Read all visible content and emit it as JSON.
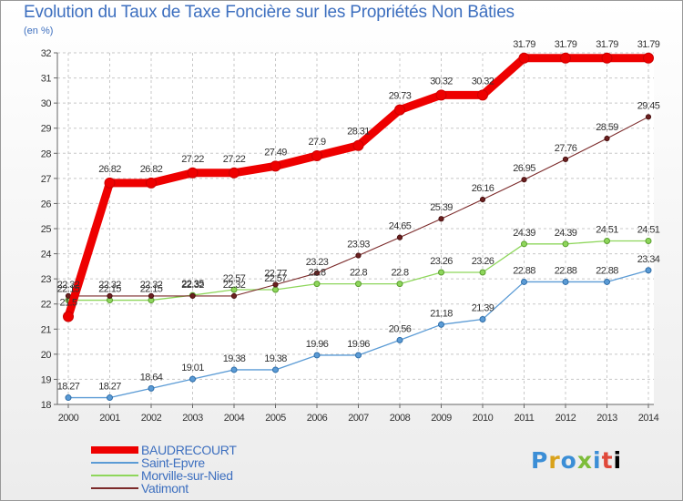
{
  "title": "Evolution du Taux de Taxe Foncière sur les Propriétés Non Bâties",
  "unit_label": "(en %)",
  "logo_text": "Proxiti",
  "chart_data": {
    "type": "line",
    "x": [
      "2000",
      "2001",
      "2002",
      "2003",
      "2004",
      "2005",
      "2006",
      "2007",
      "2008",
      "2009",
      "2010",
      "2011",
      "2012",
      "2013",
      "2014"
    ],
    "ylim": [
      18,
      32
    ],
    "yticks": [
      "18",
      "19",
      "20",
      "21",
      "22",
      "23",
      "24",
      "25",
      "26",
      "27",
      "28",
      "29",
      "30",
      "31",
      "32"
    ],
    "grid": true,
    "legend_position": "bottom-left",
    "series": [
      {
        "name": "BAUDRECOURT",
        "color": "#ee0000",
        "values": [
          21.5,
          26.82,
          26.82,
          27.22,
          27.22,
          27.49,
          27.9,
          28.31,
          29.73,
          30.32,
          30.32,
          31.79,
          31.79,
          31.79,
          31.79
        ],
        "labels": [
          "21.5",
          "26.82",
          "26.82",
          "27.22",
          "27.22",
          "27.49",
          "27.9",
          "28.31",
          "29.73",
          "30.32",
          "30.32",
          "31.79",
          "31.79",
          "31.79",
          "31.79"
        ]
      },
      {
        "name": "Saint-Epvre",
        "color": "#5b9bd5",
        "values": [
          18.27,
          18.27,
          18.64,
          19.01,
          19.38,
          19.38,
          19.96,
          19.96,
          20.56,
          21.18,
          21.39,
          22.88,
          22.88,
          22.88,
          23.34
        ],
        "labels": [
          "18.27",
          "18.27",
          "18.64",
          "19.01",
          "19.38",
          "19.38",
          "19.96",
          "19.96",
          "20.56",
          "21.18",
          "21.39",
          "22.88",
          "22.88",
          "22.88",
          "23.34"
        ]
      },
      {
        "name": "Morville-sur-Nied",
        "color": "#8ed65b",
        "values": [
          22.15,
          22.15,
          22.15,
          22.35,
          22.57,
          22.57,
          22.8,
          22.8,
          22.8,
          23.26,
          23.26,
          24.39,
          24.39,
          24.51,
          24.51
        ],
        "labels": [
          "22.15",
          "22.15",
          "22.15",
          "22.35",
          "22.57",
          "22.57",
          "22.8",
          "22.8",
          "22.8",
          "23.26",
          "23.26",
          "24.39",
          "24.39",
          "24.51",
          "24.51"
        ]
      },
      {
        "name": "Vatimont",
        "color": "#7b2a2a",
        "values": [
          22.32,
          22.32,
          22.32,
          22.32,
          22.32,
          22.77,
          23.23,
          23.93,
          24.65,
          25.39,
          26.16,
          26.95,
          27.76,
          28.59,
          29.45
        ],
        "labels": [
          "22.32",
          "22.32",
          "22.32",
          "22.32",
          "22.32",
          "22.77",
          "23.23",
          "23.93",
          "24.65",
          "25.39",
          "26.16",
          "26.95",
          "27.76",
          "28.59",
          "29.45"
        ]
      }
    ]
  }
}
